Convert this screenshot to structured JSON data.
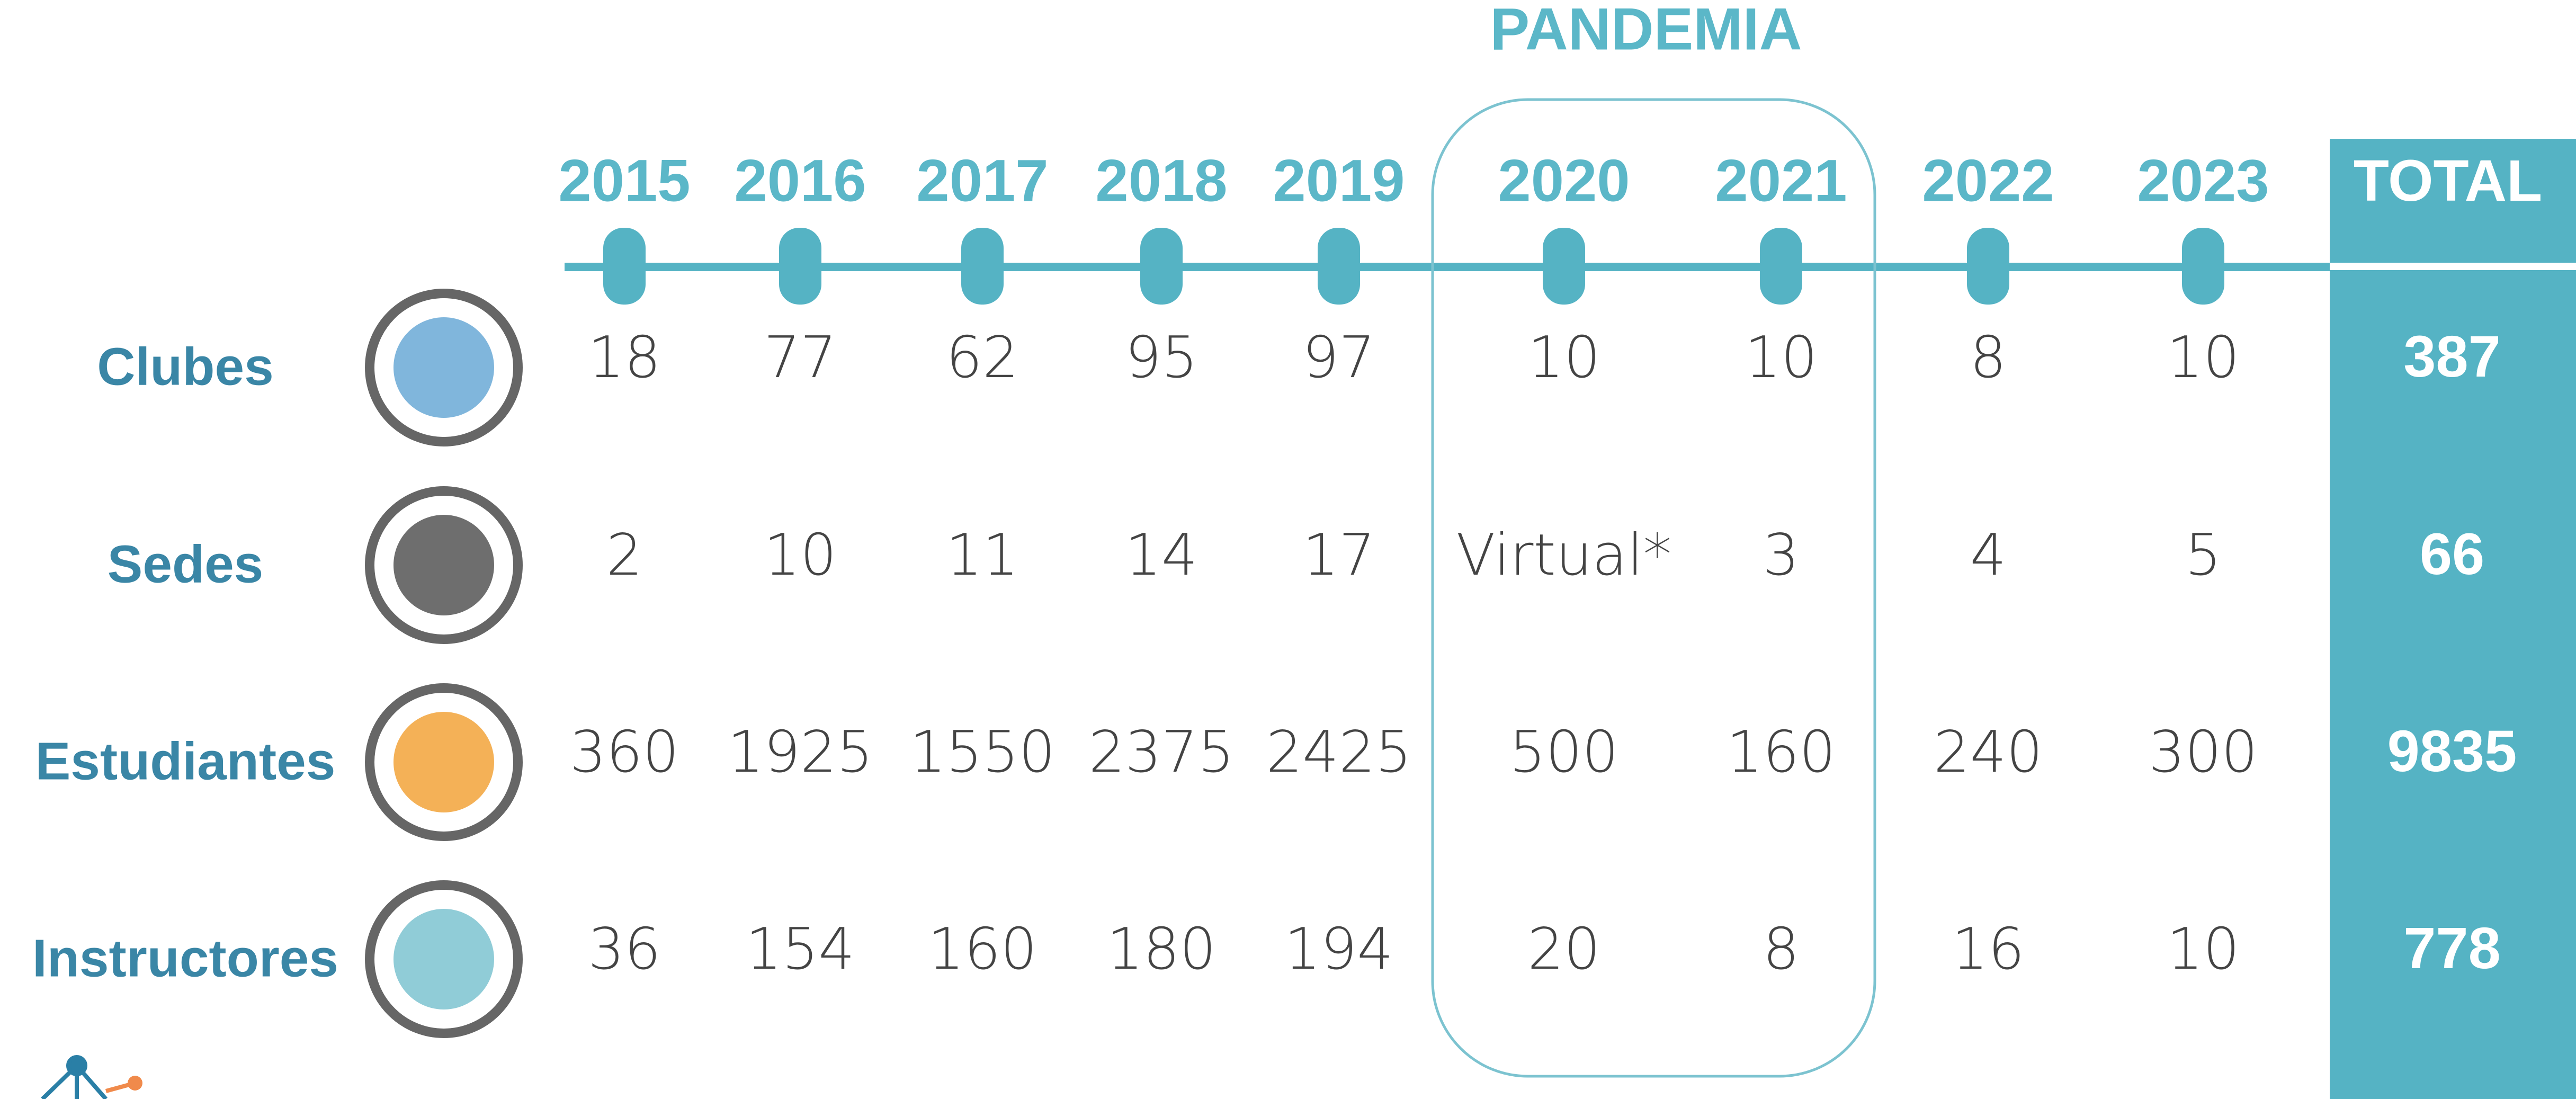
{
  "pandemic_label": "PANDEMIA",
  "table": {
    "columns": [
      "2015",
      "2016",
      "2017",
      "2018",
      "2019",
      "2020",
      "2021",
      "2022",
      "2023"
    ],
    "total_header": "TOTAL",
    "rows": [
      {
        "label": "Clubes",
        "values": [
          18,
          77,
          62,
          95,
          97,
          10,
          10,
          8,
          10
        ],
        "total": 387
      },
      {
        "label": "Sedes",
        "values": [
          2,
          10,
          11,
          14,
          17,
          "Virtual*",
          3,
          4,
          5
        ],
        "total": 66
      },
      {
        "label": "Estudiantes",
        "values": [
          360,
          1925,
          1550,
          2375,
          2425,
          500,
          160,
          240,
          300
        ],
        "total": 9835
      },
      {
        "label": "Instructores",
        "values": [
          36,
          154,
          160,
          180,
          194,
          20,
          8,
          16,
          10
        ],
        "total": 778
      }
    ]
  }
}
